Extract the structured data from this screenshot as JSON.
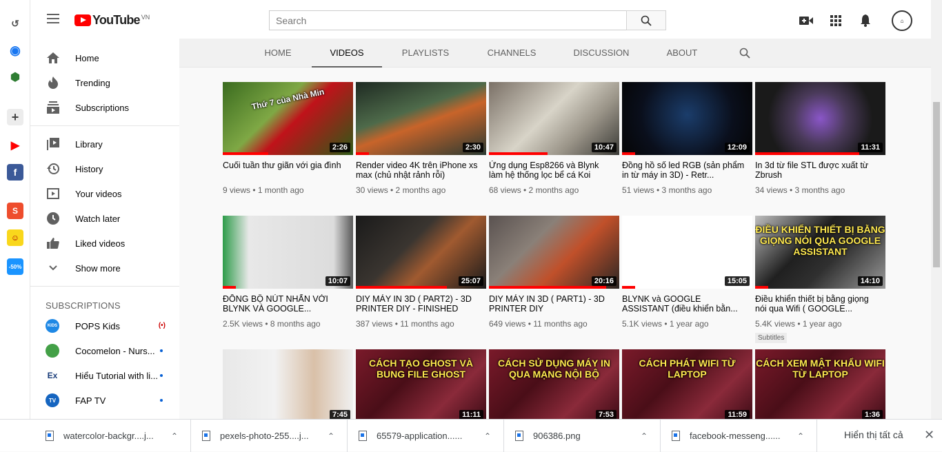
{
  "header": {
    "brand": "YouTube",
    "country_code": "VN",
    "search_placeholder": "Search"
  },
  "sidebar": {
    "main": [
      {
        "label": "Home",
        "icon": "home-icon"
      },
      {
        "label": "Trending",
        "icon": "flame-icon"
      },
      {
        "label": "Subscriptions",
        "icon": "subscriptions-icon"
      }
    ],
    "library": [
      {
        "label": "Library",
        "icon": "library-icon"
      },
      {
        "label": "History",
        "icon": "history-icon"
      },
      {
        "label": "Your videos",
        "icon": "your-videos-icon"
      },
      {
        "label": "Watch later",
        "icon": "clock-icon"
      },
      {
        "label": "Liked videos",
        "icon": "thumbs-up-icon"
      },
      {
        "label": "Show more",
        "icon": "chevron-down-icon"
      }
    ],
    "subscriptions_heading": "SUBSCRIPTIONS",
    "subscriptions": [
      {
        "label": "POPS Kids",
        "badge": "(•)",
        "avatar": "KIDS",
        "color": "#1e88e5"
      },
      {
        "label": "Cocomelon - Nurs...",
        "avatar": "",
        "color": "#43a047"
      },
      {
        "label": "Hiểu Tutorial with li...",
        "avatar": "Ex",
        "color": "#ffffff"
      },
      {
        "label": "FAP TV",
        "avatar": "TV",
        "color": "#1565c0"
      }
    ]
  },
  "tabs": [
    {
      "label": "HOME"
    },
    {
      "label": "VIDEOS"
    },
    {
      "label": "PLAYLISTS"
    },
    {
      "label": "CHANNELS"
    },
    {
      "label": "DISCUSSION"
    },
    {
      "label": "ABOUT"
    }
  ],
  "videos": [
    {
      "title": "Cuối tuần thư giãn với gia đình",
      "meta": "9 views • 1 month ago",
      "duration": "2:26",
      "progress": 0.35,
      "overlay": "Thứ 7 của Nhà Min",
      "bg": "linear-gradient(135deg,#3a6b1f,#7fa845 40%,#c0121a 55%,#2e5a16)"
    },
    {
      "title": "Render video 4K trên iPhone xs max (chủ nhật rảnh rỗi)",
      "meta": "30 views • 2 months ago",
      "duration": "2:30",
      "progress": 0.1,
      "overlay": "",
      "bg": "linear-gradient(160deg,#1e2a22,#4e6a4a 40%,#c8642a 55%,#2a3a32)"
    },
    {
      "title": "Ứng dụng Esp8266 và Blynk làm hệ thống lọc bể cá Koi",
      "meta": "68 views • 2 months ago",
      "duration": "10:47",
      "progress": 0.45,
      "overlay": "",
      "bg": "linear-gradient(135deg,#7a7066,#d8d4c8 45%,#9a9488 70%,#3a3a36)"
    },
    {
      "title": "Đồng hồ số led RGB (sản phẩm in từ máy in 3D) - Retr...",
      "meta": "51 views • 3 months ago",
      "duration": "12:09",
      "progress": 0.1,
      "overlay": "",
      "bg": "radial-gradient(circle at 50% 45%,#1b3d6b,#0a0f1c 60%,#050505)"
    },
    {
      "title": "In 3d từ file STL được xuất từ Zbrush",
      "meta": "34 views • 3 months ago",
      "duration": "11:31",
      "progress": 0.8,
      "overlay": "",
      "bg": "radial-gradient(circle at 50% 50%,#8a56c8,#4a3a5a 35%,#1a1a1a 70%)"
    },
    {
      "title": "ĐỒNG BỘ NÚT NHẤN VỚI BLYNK VÀ GOOGLE...",
      "meta": "2.5K views • 8 months ago",
      "duration": "10:07",
      "progress": 0.1,
      "overlay": "",
      "bg": "linear-gradient(90deg,#2e9c4a,#e8e8e8 20%,#dcdcdc 85%,#5a5a5a)"
    },
    {
      "title": "DIY MÁY IN 3D ( PART2) - 3D PRINTER DIY - FINISHED",
      "meta": "387 views • 11 months ago",
      "duration": "25:07",
      "progress": 0.7,
      "overlay": "",
      "bg": "linear-gradient(135deg,#1a1a1a,#3a3530 40%,#a05a30 60%,#1a1a1a)"
    },
    {
      "title": "DIY MÁY IN 3D ( PART1) - 3D PRINTER DIY",
      "meta": "649 views • 11 months ago",
      "duration": "20:16",
      "progress": 0.9,
      "overlay": "",
      "bg": "linear-gradient(135deg,#5a5250,#8a8078 35%,#c0502a 60%,#2a2624)"
    },
    {
      "title": "BLYNK và GOOGLE ASSISTANT (điều khiển bằn...",
      "meta": "5.1K views • 1 year ago",
      "duration": "15:05",
      "progress": 0.1,
      "overlay": "",
      "bg": "linear-gradient(90deg,#ffffff,#ffffff)"
    },
    {
      "title": "Điều khiển thiết bị bằng giọng nói qua Wifi ( GOOGLE...",
      "meta": "5.4K views • 1 year ago",
      "badge": "Subtitles",
      "duration": "14:10",
      "progress": 0.1,
      "overlay": "ĐIỀU KHIỂN THIẾT BỊ BẰNG GIỌNG NÓI QUA GOOGLE ASSISTANT",
      "bg": "linear-gradient(135deg,#bfbfbf,#202020 40%,#303030 60%,#9a9a9a)"
    },
    {
      "title": "",
      "meta": "",
      "duration": "7:45",
      "progress": 0,
      "overlay": "",
      "bg": "linear-gradient(90deg,#e8e8e8,#f2f2f2 40%,#d9c0a8 70%,#f0f0f0)"
    },
    {
      "title": "",
      "meta": "",
      "duration": "11:11",
      "progress": 0,
      "overlay": "CÁCH TẠO GHOST VÀ BUNG FILE GHOST",
      "bg": "linear-gradient(135deg,#7a1a2a,#4a0e18 40%,#8a2a3a 70%,#3a0a14)"
    },
    {
      "title": "",
      "meta": "",
      "duration": "7:53",
      "progress": 0,
      "overlay": "CÁCH SỬ DỤNG MÁY IN QUA MẠNG NỘI BỘ",
      "bg": "linear-gradient(135deg,#7a1a2a,#4a0e18 40%,#8a2a3a 70%,#3a0a14)"
    },
    {
      "title": "",
      "meta": "",
      "duration": "11:59",
      "progress": 0,
      "overlay": "CÁCH PHÁT WIFI TỪ LAPTOP",
      "bg": "linear-gradient(135deg,#7a1a2a,#4a0e18 40%,#8a2a3a 70%,#3a0a14)"
    },
    {
      "title": "",
      "meta": "",
      "duration": "1:36",
      "progress": 0,
      "overlay": "CÁCH XEM MẬT KHẨU WIFI TỪ LAPTOP",
      "bg": "linear-gradient(135deg,#7a1a2a,#4a0e18 40%,#8a2a3a 70%,#3a0a14)"
    }
  ],
  "downloads": [
    {
      "name": "watercolor-backgr....j..."
    },
    {
      "name": "pexels-photo-255....j..."
    },
    {
      "name": "65579-application......"
    },
    {
      "name": "906386.png"
    },
    {
      "name": "facebook-messeng......"
    }
  ],
  "downloads_show_all": "Hiển thị tất cả",
  "colors": {
    "brand_red": "#ff0000",
    "accent_blue": "#065fd4"
  }
}
